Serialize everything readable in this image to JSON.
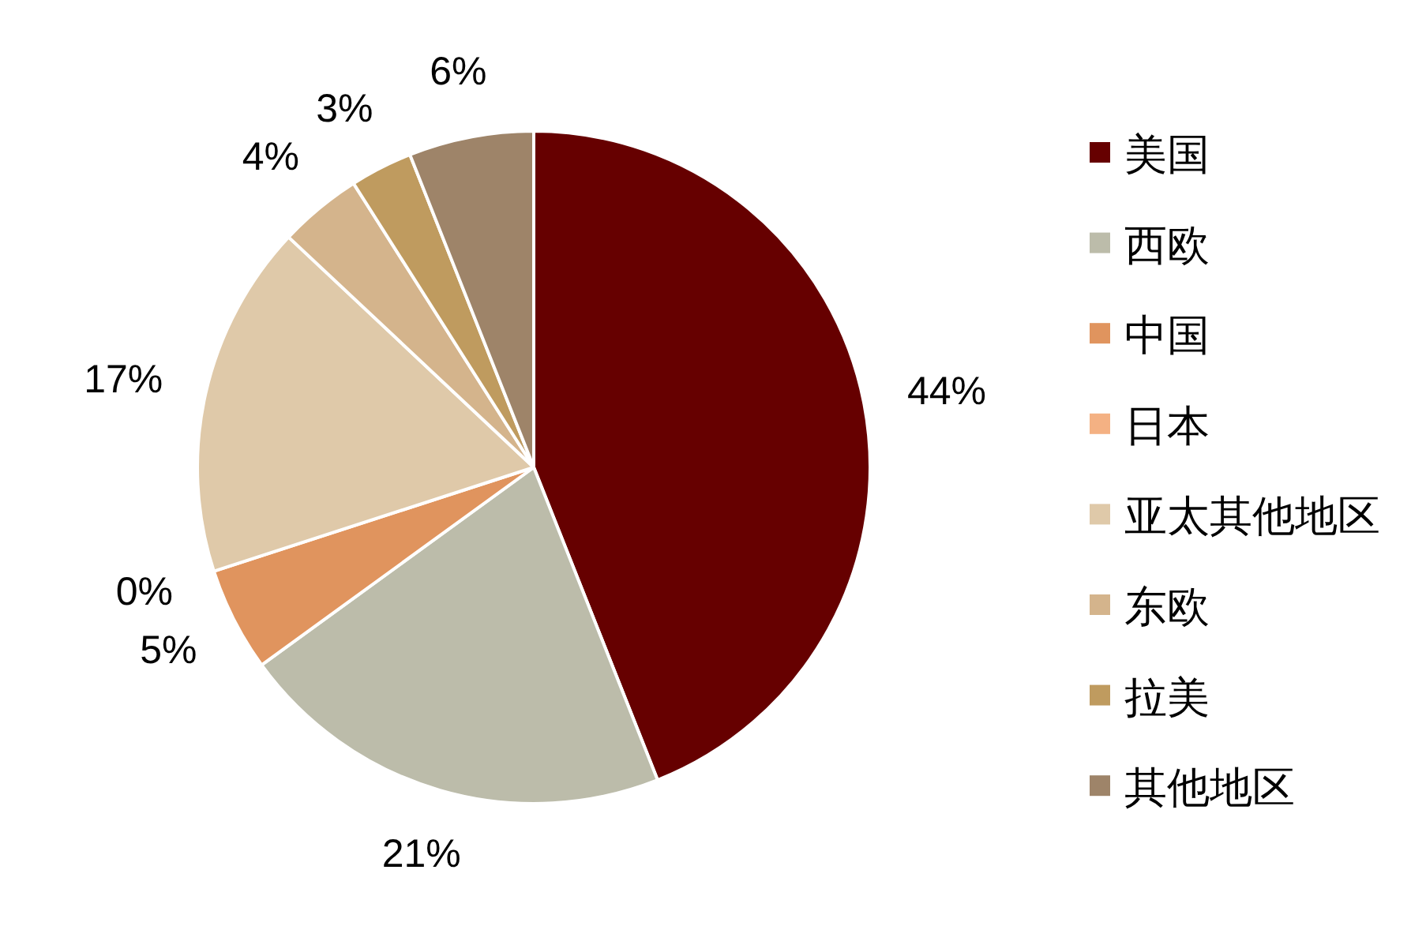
{
  "chart_data": {
    "type": "pie",
    "categories": [
      "美国",
      "西欧",
      "中国",
      "日本",
      "亚太其他地区",
      "东欧",
      "拉美",
      "其他地区"
    ],
    "values": [
      44,
      21,
      5,
      0,
      17,
      4,
      3,
      6
    ],
    "colors": [
      "#660000",
      "#bcbcaa",
      "#e0945e",
      "#f4b183",
      "#dfc9a9",
      "#d4b48c",
      "#bf9b5f",
      "#9e8469"
    ],
    "value_labels": [
      "44%",
      "21%",
      "5%",
      "0%",
      "17%",
      "4%",
      "3%",
      "6%"
    ],
    "legend": "right"
  }
}
